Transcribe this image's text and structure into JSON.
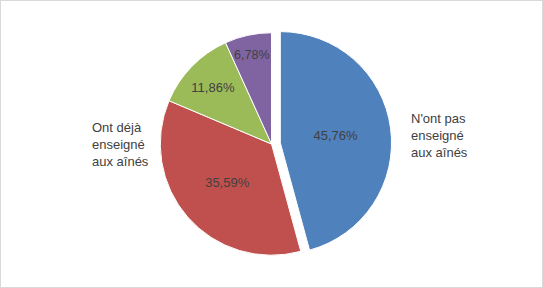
{
  "chart_data": {
    "type": "pie",
    "values": [
      45.76,
      35.59,
      11.86,
      6.78
    ],
    "value_labels": [
      "45,76%",
      "35,59%",
      "11,86%",
      "6,78%"
    ],
    "colors": [
      "#4f81bd",
      "#c0504d",
      "#9bbb59",
      "#8064a2"
    ],
    "data_labels": true,
    "legend": false,
    "annotations": [
      {
        "text": "Ont déjà\nenseigné\naux aînés"
      },
      {
        "text": "N'ont pas\nenseigné\naux aînés"
      }
    ]
  }
}
